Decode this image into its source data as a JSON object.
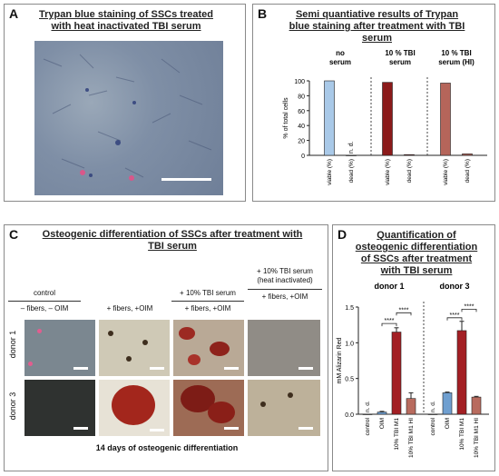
{
  "panel_a": {
    "label": "A",
    "title_line1": "Trypan blue staining of SSCs treated",
    "title_line2": "with heat inactivated TBI serum"
  },
  "panel_b": {
    "label": "B",
    "title_line1": "Semi quantiative results of Trypan",
    "title_line2": "blue staining after treatment with TBI",
    "title_line3": "serum",
    "group_labels": [
      [
        "no",
        "serum"
      ],
      [
        "10 % TBI",
        "serum"
      ],
      [
        "10 % TBI",
        "serum (HI)"
      ]
    ],
    "nd_label": "n. d."
  },
  "panel_c": {
    "label": "C",
    "title_line1": "Osteogenic differentiation of SSCs after treatment with",
    "title_line2": "TBI serum",
    "col_top_labels": [
      "control",
      "",
      "+ 10% TBI serum",
      "+ 10% TBI serum (heat inactivated)"
    ],
    "col_sub_labels": [
      "– fibers, – OIM",
      "+ fibers, +OIM",
      "+ fibers, +OIM",
      "+ fibers, +OIM"
    ],
    "row_labels": [
      "donor 1",
      "donor 3"
    ],
    "footer": "14 days of osteogenic differentiation"
  },
  "panel_d": {
    "label": "D",
    "title_line1": "Quantification of",
    "title_line2": "osteogenic differentiation",
    "title_line3": "of SSCs after treatment",
    "title_line4": "with TBI serum",
    "donor_labels": [
      "donor 1",
      "donor 3"
    ],
    "nd_label": "n. d.",
    "sig_label": "****"
  },
  "colors": {
    "viable_no_serum": "#a9c9e8",
    "viable_tbi": "#8b1a1a",
    "viable_hi": "#b5655a",
    "control": "#b7cfe8",
    "oim": "#6f9fd0",
    "tbi_m1": "#a31f24",
    "tbi_m1_hi": "#b86b5e"
  },
  "chart_data": [
    {
      "type": "bar",
      "panel": "B",
      "categories": [
        "viable (%)",
        "dead (%)",
        "viable (%)",
        "dead (%)",
        "viable (%)",
        "dead (%)"
      ],
      "values": [
        100,
        0,
        98,
        1,
        97,
        2
      ],
      "ylabel": "% of total cells",
      "ylim": [
        0,
        100
      ],
      "yticks": [
        0,
        20,
        40,
        60,
        80,
        100
      ]
    },
    {
      "type": "bar",
      "panel": "D",
      "categories": [
        "control",
        "OIM",
        "10% TBI M1",
        "10% TBI M1 HI",
        "control",
        "OIM",
        "10% TBI M1",
        "10% TBI M1 HI"
      ],
      "values": [
        0,
        0.03,
        1.15,
        0.22,
        0,
        0.3,
        1.17,
        0.24
      ],
      "errors": [
        0,
        0.01,
        0.06,
        0.08,
        0,
        0.01,
        0.13,
        0.01
      ],
      "ylabel": "mM Alizarin Red",
      "ylim": [
        0,
        1.5
      ],
      "yticks": [
        0.0,
        0.5,
        1.0,
        1.5
      ]
    }
  ]
}
